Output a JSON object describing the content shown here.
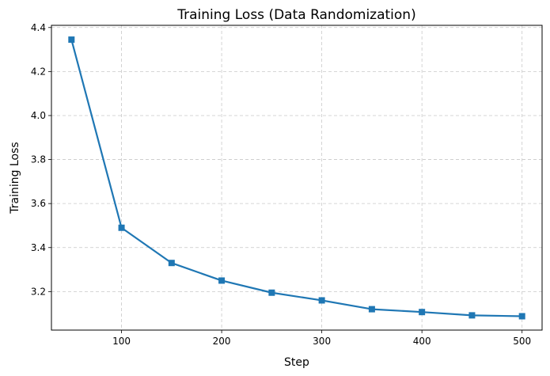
{
  "chart_data": {
    "type": "line",
    "title": "Training Loss (Data Randomization)",
    "xlabel": "Step",
    "ylabel": "Training Loss",
    "xlim": [
      30,
      520
    ],
    "ylim": [
      3.025,
      4.41
    ],
    "xticks": [
      100,
      200,
      300,
      400,
      500
    ],
    "yticks": [
      3.2,
      3.4,
      3.6,
      3.8,
      4.0,
      4.2,
      4.4
    ],
    "grid": true,
    "grid_style": "dashed",
    "series": [
      {
        "color": "#1f77b4",
        "marker": "square",
        "x": [
          50,
          100,
          150,
          200,
          250,
          300,
          350,
          400,
          450,
          500
        ],
        "y": [
          4.345,
          3.49,
          3.33,
          3.25,
          3.195,
          3.16,
          3.12,
          3.107,
          3.092,
          3.088
        ]
      }
    ]
  }
}
